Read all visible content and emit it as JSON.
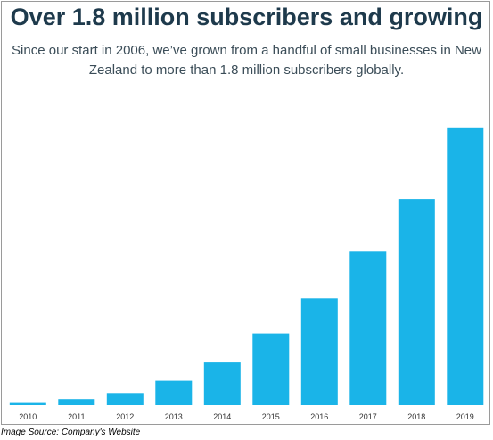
{
  "header": {
    "title": "Over 1.8 million subscribers and growing",
    "subtitle": "Since our start in 2006, we’ve grown from a handful of small businesses in New Zealand to more than 1.8 million subscribers globally."
  },
  "caption": "Image Source: Company's Website",
  "colors": {
    "bar": "#1ab4e8",
    "title": "#1e3a4c",
    "text": "#3b4d58",
    "axis_tick_label": "#333333"
  },
  "chart_data": {
    "type": "bar",
    "title": "Over 1.8 million subscribers and growing",
    "xlabel": "",
    "ylabel": "",
    "categories": [
      "2010",
      "2011",
      "2012",
      "2013",
      "2014",
      "2015",
      "2016",
      "2017",
      "2018",
      "2019"
    ],
    "series": [
      {
        "values": [
          0.02,
          0.04,
          0.08,
          0.16,
          0.28,
          0.47,
          0.7,
          1.01,
          1.35,
          1.82
        ]
      }
    ],
    "ylim": [
      0,
      2.0
    ],
    "grid": false,
    "legend": "none",
    "y_axis_shown": false
  }
}
